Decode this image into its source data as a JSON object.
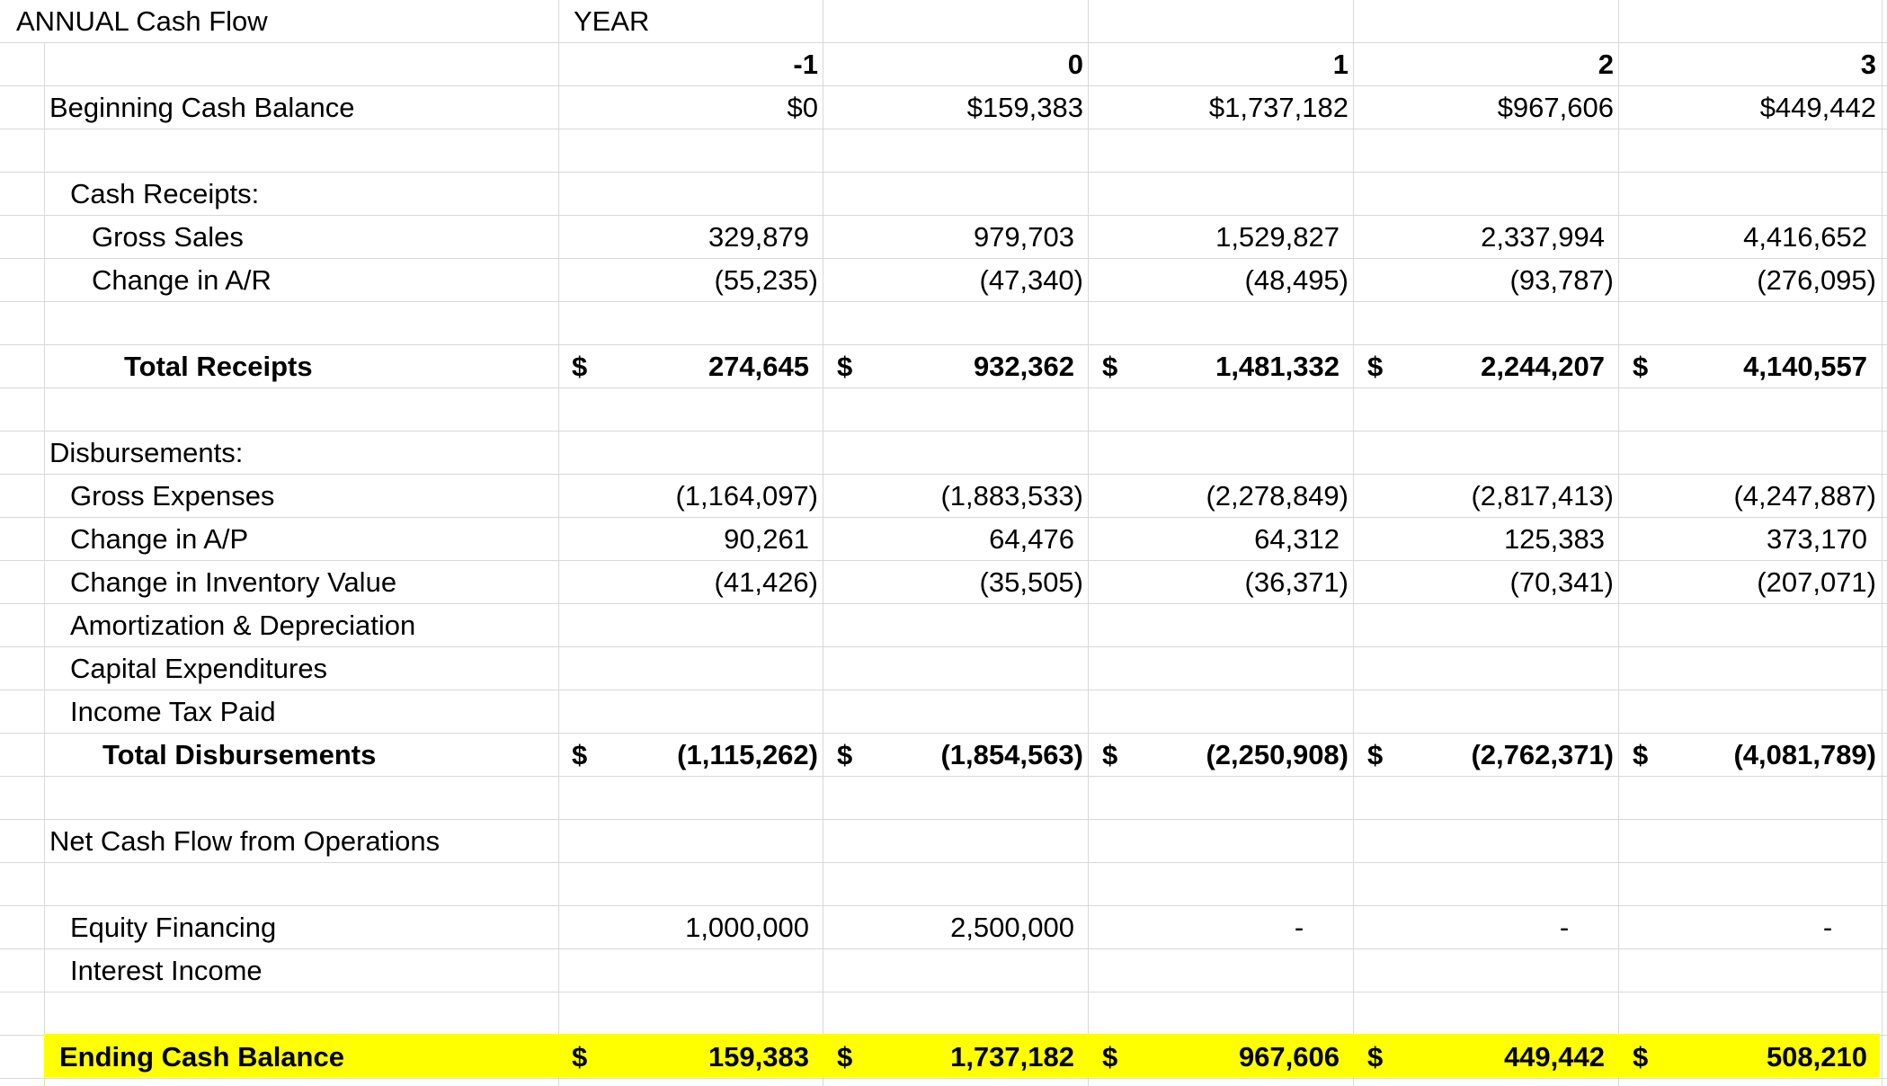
{
  "title": "ANNUAL Cash Flow",
  "year_header": "YEAR",
  "years": [
    "-1",
    "0",
    "1",
    "2",
    "3"
  ],
  "rows": {
    "beginning_cash": {
      "label": "Beginning Cash Balance",
      "values": [
        "$0",
        "$159,383",
        "$1,737,182",
        "$967,606",
        "$449,442"
      ]
    },
    "cash_receipts_header": {
      "label": "Cash Receipts:"
    },
    "gross_sales": {
      "label": "Gross Sales",
      "values": [
        "329,879",
        "979,703",
        "1,529,827",
        "2,337,994",
        "4,416,652"
      ]
    },
    "change_ar": {
      "label": "Change in A/R",
      "values": [
        "(55,235)",
        "(47,340)",
        "(48,495)",
        "(93,787)",
        "(276,095)"
      ]
    },
    "total_receipts": {
      "label": "Total Receipts",
      "currency": "$",
      "values": [
        "274,645",
        "932,362",
        "1,481,332",
        "2,244,207",
        "4,140,557"
      ]
    },
    "disbursements_header": {
      "label": "Disbursements:"
    },
    "gross_expenses": {
      "label": "Gross Expenses",
      "values": [
        "(1,164,097)",
        "(1,883,533)",
        "(2,278,849)",
        "(2,817,413)",
        "(4,247,887)"
      ]
    },
    "change_ap": {
      "label": "Change in A/P",
      "values": [
        "90,261",
        "64,476",
        "64,312",
        "125,383",
        "373,170"
      ]
    },
    "change_inventory": {
      "label": "Change in Inventory Value",
      "values": [
        "(41,426)",
        "(35,505)",
        "(36,371)",
        "(70,341)",
        "(207,071)"
      ]
    },
    "amortization": {
      "label": "Amortization & Depreciation"
    },
    "capex": {
      "label": "Capital Expenditures"
    },
    "income_tax": {
      "label": "Income Tax Paid"
    },
    "total_disbursements": {
      "label": "Total Disbursements",
      "currency": "$",
      "values": [
        "(1,115,262)",
        "(1,854,563)",
        "(2,250,908)",
        "(2,762,371)",
        "(4,081,789)"
      ]
    },
    "net_cash_flow": {
      "label": "Net Cash Flow from Operations"
    },
    "equity_financing": {
      "label": "Equity Financing",
      "values": [
        "1,000,000",
        "2,500,000",
        "-",
        "-",
        "-"
      ]
    },
    "interest_income": {
      "label": "Interest Income"
    },
    "ending_cash": {
      "label": "Ending Cash Balance",
      "currency": "$",
      "values": [
        "159,383",
        "1,737,182",
        "967,606",
        "449,442",
        "508,210"
      ]
    }
  },
  "colors": {
    "highlight": "#ffff00",
    "gridline": "#d8d8d8"
  }
}
